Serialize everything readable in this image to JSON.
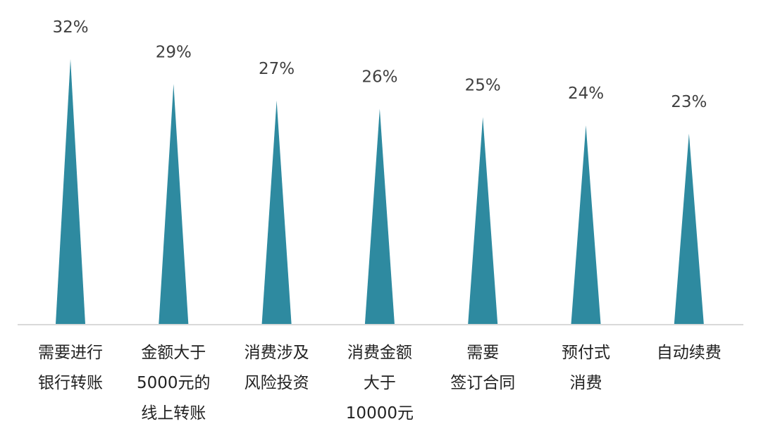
{
  "chart_data": {
    "type": "bar",
    "title": "",
    "xlabel": "",
    "ylabel": "",
    "ylim": [
      0,
      35
    ],
    "grid": false,
    "legend": "none",
    "bar_color": "#2e8aa0",
    "axis_color": "#d9d9d9",
    "categories": [
      "需要进行\n银行转账",
      "金额大于\n5000元的\n线上转账",
      "消费涉及\n风险投资",
      "消费金额\n大于\n10000元",
      "需要\n签订合同",
      "预付式\n消费",
      "自动续费"
    ],
    "values": [
      32,
      29,
      27,
      26,
      25,
      24,
      23
    ],
    "data_labels": [
      "32%",
      "29%",
      "27%",
      "26%",
      "25%",
      "24%",
      "23%"
    ]
  }
}
